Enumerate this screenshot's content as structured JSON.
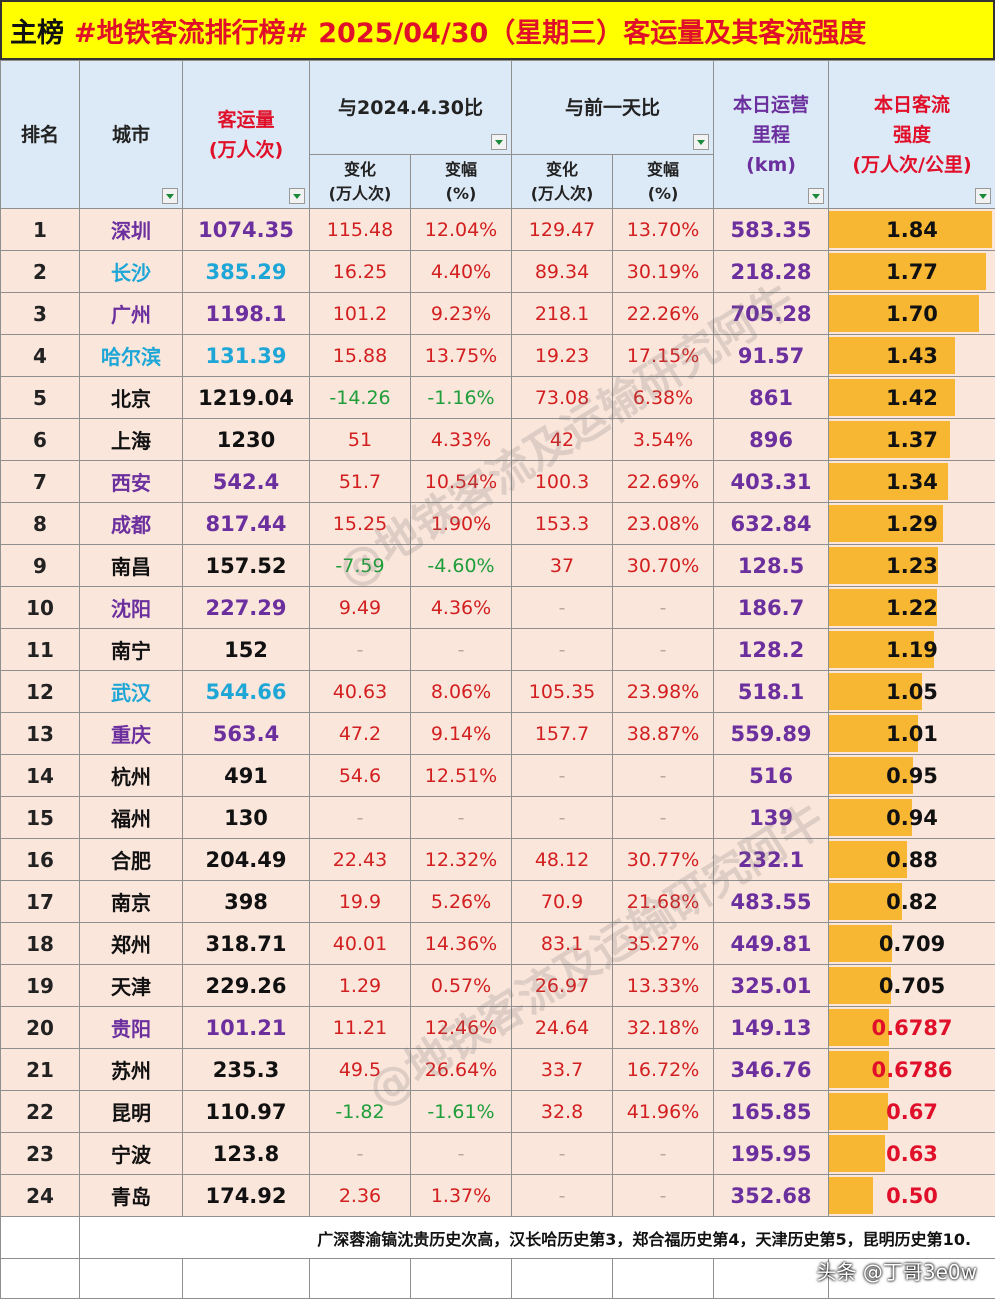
{
  "title": {
    "part1": "主榜",
    "part2": "#地铁客流排行榜#",
    "part3": "2025/04/30（星期三）客运量及其客流强度"
  },
  "headers": {
    "rank": "排名",
    "city": "城市",
    "passengers_l1": "客运量",
    "passengers_l2": "(万人次)",
    "group_year": "与2024.4.30比",
    "group_prev": "与前一天比",
    "change_l1": "变化",
    "change_l2": "(万人次)",
    "pct_l1": "变幅",
    "pct_l2": "(%)",
    "mileage_l1": "本日运营",
    "mileage_l2": "里程",
    "mileage_l3": "(km)",
    "intensity_l1": "本日客流",
    "intensity_l2": "强度",
    "intensity_l3": "(万人次/公里)"
  },
  "rows": [
    {
      "rank": "1",
      "city": "深圳",
      "passengers": "1074.35",
      "yoy_change": "115.48",
      "yoy_pct": "12.04%",
      "dod_change": "129.47",
      "dod_pct": "13.70%",
      "mileage": "583.35",
      "intensity": "1.84",
      "intensity_value": 1.84,
      "city_color": "purple",
      "pass_color": "purple"
    },
    {
      "rank": "2",
      "city": "长沙",
      "passengers": "385.29",
      "yoy_change": "16.25",
      "yoy_pct": "4.40%",
      "dod_change": "89.34",
      "dod_pct": "30.19%",
      "mileage": "218.28",
      "intensity": "1.77",
      "intensity_value": 1.77,
      "city_color": "cyan",
      "pass_color": "cyan"
    },
    {
      "rank": "3",
      "city": "广州",
      "passengers": "1198.1",
      "yoy_change": "101.2",
      "yoy_pct": "9.23%",
      "dod_change": "218.1",
      "dod_pct": "22.26%",
      "mileage": "705.28",
      "intensity": "1.70",
      "intensity_value": 1.7,
      "city_color": "purple",
      "pass_color": "purple"
    },
    {
      "rank": "4",
      "city": "哈尔滨",
      "passengers": "131.39",
      "yoy_change": "15.88",
      "yoy_pct": "13.75%",
      "dod_change": "19.23",
      "dod_pct": "17.15%",
      "mileage": "91.57",
      "intensity": "1.43",
      "intensity_value": 1.43,
      "city_color": "cyan",
      "pass_color": "cyan"
    },
    {
      "rank": "5",
      "city": "北京",
      "passengers": "1219.04",
      "yoy_change": "-14.26",
      "yoy_pct": "-1.16%",
      "dod_change": "73.08",
      "dod_pct": "6.38%",
      "mileage": "861",
      "intensity": "1.42",
      "intensity_value": 1.42,
      "city_color": "black",
      "pass_color": "black"
    },
    {
      "rank": "6",
      "city": "上海",
      "passengers": "1230",
      "yoy_change": "51",
      "yoy_pct": "4.33%",
      "dod_change": "42",
      "dod_pct": "3.54%",
      "mileage": "896",
      "intensity": "1.37",
      "intensity_value": 1.37,
      "city_color": "black",
      "pass_color": "black"
    },
    {
      "rank": "7",
      "city": "西安",
      "passengers": "542.4",
      "yoy_change": "51.7",
      "yoy_pct": "10.54%",
      "dod_change": "100.3",
      "dod_pct": "22.69%",
      "mileage": "403.31",
      "intensity": "1.34",
      "intensity_value": 1.34,
      "city_color": "purple",
      "pass_color": "purple"
    },
    {
      "rank": "8",
      "city": "成都",
      "passengers": "817.44",
      "yoy_change": "15.25",
      "yoy_pct": "1.90%",
      "dod_change": "153.3",
      "dod_pct": "23.08%",
      "mileage": "632.84",
      "intensity": "1.29",
      "intensity_value": 1.29,
      "city_color": "purple",
      "pass_color": "purple"
    },
    {
      "rank": "9",
      "city": "南昌",
      "passengers": "157.52",
      "yoy_change": "-7.59",
      "yoy_pct": "-4.60%",
      "dod_change": "37",
      "dod_pct": "30.70%",
      "mileage": "128.5",
      "intensity": "1.23",
      "intensity_value": 1.23,
      "city_color": "black",
      "pass_color": "black"
    },
    {
      "rank": "10",
      "city": "沈阳",
      "passengers": "227.29",
      "yoy_change": "9.49",
      "yoy_pct": "4.36%",
      "dod_change": "-",
      "dod_pct": "-",
      "mileage": "186.7",
      "intensity": "1.22",
      "intensity_value": 1.22,
      "city_color": "purple",
      "pass_color": "purple"
    },
    {
      "rank": "11",
      "city": "南宁",
      "passengers": "152",
      "yoy_change": "-",
      "yoy_pct": "-",
      "dod_change": "-",
      "dod_pct": "-",
      "mileage": "128.2",
      "intensity": "1.19",
      "intensity_value": 1.19,
      "city_color": "black",
      "pass_color": "black"
    },
    {
      "rank": "12",
      "city": "武汉",
      "passengers": "544.66",
      "yoy_change": "40.63",
      "yoy_pct": "8.06%",
      "dod_change": "105.35",
      "dod_pct": "23.98%",
      "mileage": "518.1",
      "intensity": "1.05",
      "intensity_value": 1.05,
      "city_color": "cyan",
      "pass_color": "cyan"
    },
    {
      "rank": "13",
      "city": "重庆",
      "passengers": "563.4",
      "yoy_change": "47.2",
      "yoy_pct": "9.14%",
      "dod_change": "157.7",
      "dod_pct": "38.87%",
      "mileage": "559.89",
      "intensity": "1.01",
      "intensity_value": 1.01,
      "city_color": "purple",
      "pass_color": "purple"
    },
    {
      "rank": "14",
      "city": "杭州",
      "passengers": "491",
      "yoy_change": "54.6",
      "yoy_pct": "12.51%",
      "dod_change": "-",
      "dod_pct": "-",
      "mileage": "516",
      "intensity": "0.95",
      "intensity_value": 0.95,
      "city_color": "black",
      "pass_color": "black"
    },
    {
      "rank": "15",
      "city": "福州",
      "passengers": "130",
      "yoy_change": "-",
      "yoy_pct": "-",
      "dod_change": "-",
      "dod_pct": "-",
      "mileage": "139",
      "intensity": "0.94",
      "intensity_value": 0.94,
      "city_color": "black",
      "pass_color": "black"
    },
    {
      "rank": "16",
      "city": "合肥",
      "passengers": "204.49",
      "yoy_change": "22.43",
      "yoy_pct": "12.32%",
      "dod_change": "48.12",
      "dod_pct": "30.77%",
      "mileage": "232.1",
      "intensity": "0.88",
      "intensity_value": 0.88,
      "city_color": "black",
      "pass_color": "black"
    },
    {
      "rank": "17",
      "city": "南京",
      "passengers": "398",
      "yoy_change": "19.9",
      "yoy_pct": "5.26%",
      "dod_change": "70.9",
      "dod_pct": "21.68%",
      "mileage": "483.55",
      "intensity": "0.82",
      "intensity_value": 0.82,
      "city_color": "black",
      "pass_color": "black"
    },
    {
      "rank": "18",
      "city": "郑州",
      "passengers": "318.71",
      "yoy_change": "40.01",
      "yoy_pct": "14.36%",
      "dod_change": "83.1",
      "dod_pct": "35.27%",
      "mileage": "449.81",
      "intensity": "0.709",
      "intensity_value": 0.709,
      "city_color": "black",
      "pass_color": "black"
    },
    {
      "rank": "19",
      "city": "天津",
      "passengers": "229.26",
      "yoy_change": "1.29",
      "yoy_pct": "0.57%",
      "dod_change": "26.97",
      "dod_pct": "13.33%",
      "mileage": "325.01",
      "intensity": "0.705",
      "intensity_value": 0.705,
      "city_color": "black",
      "pass_color": "black"
    },
    {
      "rank": "20",
      "city": "贵阳",
      "passengers": "101.21",
      "yoy_change": "11.21",
      "yoy_pct": "12.46%",
      "dod_change": "24.64",
      "dod_pct": "32.18%",
      "mileage": "149.13",
      "intensity": "0.6787",
      "intensity_value": 0.6787,
      "city_color": "purple",
      "pass_color": "purple",
      "intensity_red": true
    },
    {
      "rank": "21",
      "city": "苏州",
      "passengers": "235.3",
      "yoy_change": "49.5",
      "yoy_pct": "26.64%",
      "dod_change": "33.7",
      "dod_pct": "16.72%",
      "mileage": "346.76",
      "intensity": "0.6786",
      "intensity_value": 0.6786,
      "city_color": "black",
      "pass_color": "black",
      "intensity_red": true
    },
    {
      "rank": "22",
      "city": "昆明",
      "passengers": "110.97",
      "yoy_change": "-1.82",
      "yoy_pct": "-1.61%",
      "dod_change": "32.8",
      "dod_pct": "41.96%",
      "mileage": "165.85",
      "intensity": "0.67",
      "intensity_value": 0.67,
      "city_color": "black",
      "pass_color": "black",
      "intensity_red": true
    },
    {
      "rank": "23",
      "city": "宁波",
      "passengers": "123.8",
      "yoy_change": "-",
      "yoy_pct": "-",
      "dod_change": "-",
      "dod_pct": "-",
      "mileage": "195.95",
      "intensity": "0.63",
      "intensity_value": 0.63,
      "city_color": "black",
      "pass_color": "black",
      "intensity_red": true
    },
    {
      "rank": "24",
      "city": "青岛",
      "passengers": "174.92",
      "yoy_change": "2.36",
      "yoy_pct": "1.37%",
      "dod_change": "-",
      "dod_pct": "-",
      "mileage": "352.68",
      "intensity": "0.50",
      "intensity_value": 0.5,
      "city_color": "black",
      "pass_color": "black",
      "intensity_red": true
    }
  ],
  "intensity_max": 1.84,
  "note": "广深蓉渝镐沈贵历史次高，汉长哈历史第3，郑合福历史第4，天津历史第5，昆明历史第10.",
  "watermark_text": "@地铁客流及运输研究阿牛",
  "credit": "头条 @丁哥3e0w"
}
